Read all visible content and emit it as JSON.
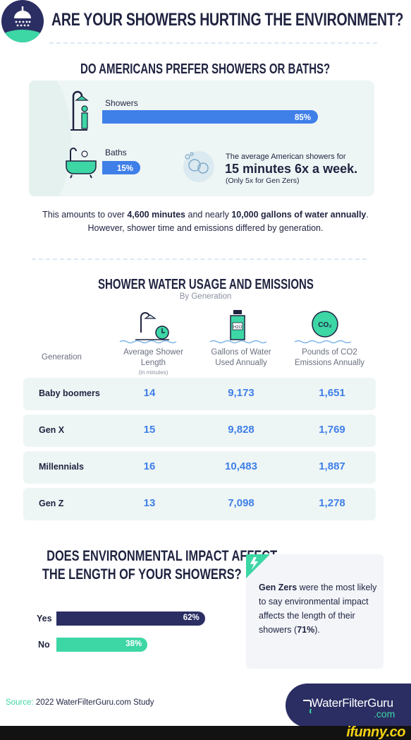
{
  "header": {
    "title": "ARE YOUR SHOWERS HURTING THE ENVIRONMENT?",
    "logo_icon": "shower-head-icon"
  },
  "section1": {
    "title": "DO AMERICANS PREFER SHOWERS OR BATHS?",
    "stat_line1": "The average American showers for",
    "stat_big": "15 minutes 6x a week.",
    "stat_note": "(Only 5x for Gen Zers)"
  },
  "paragraph": {
    "part1": "This amounts to over ",
    "bold1": "4,600 minutes",
    "part2": " and nearly ",
    "bold2": "10,000 gallons of water annually",
    "part3": ". However, shower time and emissions differed by generation."
  },
  "section2": {
    "title": "SHOWER WATER USAGE AND EMISSIONS",
    "subtitle": "By Generation",
    "gen_header": "Generation",
    "col1": "Average Shower Length",
    "col1_note": "(in minutes)",
    "col2": "Gallons of Water Used Annually",
    "col3": "Pounds of CO2 Emissions Annually",
    "co2_icon_text": "CO₂",
    "h2o_icon_text": "H2O"
  },
  "section3": {
    "title_line1": "DOES ENVIRONMENTAL IMPACT AFFECT",
    "title_line2": "THE LENGTH OF YOUR SHOWERS?",
    "card_bold": "Gen Zers",
    "card_text1": " were the most likely to say environmental impact affects the length of their showers (",
    "card_pct": "71%",
    "card_text2": ")."
  },
  "footer": {
    "source_label": "Source:",
    "source_text": " 2022 WaterFilterGuru.com Study",
    "brand": "WaterFilterGuru",
    "brand_com": ".com",
    "watermark": "ifunny.co"
  },
  "colors": {
    "navy": "#2b2e63",
    "blue": "#3f7fe8",
    "green": "#3dd6a5",
    "panel": "#eef6f5"
  },
  "chart_data": [
    {
      "type": "bar",
      "title": "DO AMERICANS PREFER SHOWERS OR BATHS?",
      "categories": [
        "Showers",
        "Baths"
      ],
      "values": [
        85,
        15
      ],
      "value_labels": [
        "85%",
        "15%"
      ],
      "orientation": "horizontal",
      "xlim": [
        0,
        100
      ]
    },
    {
      "type": "table",
      "title": "SHOWER WATER USAGE AND EMISSIONS",
      "subtitle": "By Generation",
      "columns": [
        "Generation",
        "Average Shower Length (in minutes)",
        "Gallons of Water Used Annually",
        "Pounds of CO2 Emissions Annually"
      ],
      "rows": [
        {
          "generation": "Baby boomers",
          "length": "14",
          "gallons": "9,173",
          "co2": "1,651"
        },
        {
          "generation": "Gen X",
          "length": "15",
          "gallons": "9,828",
          "co2": "1,769"
        },
        {
          "generation": "Millennials",
          "length": "16",
          "gallons": "10,483",
          "co2": "1,887"
        },
        {
          "generation": "Gen Z",
          "length": "13",
          "gallons": "7,098",
          "co2": "1,278"
        }
      ]
    },
    {
      "type": "bar",
      "title": "DOES ENVIRONMENTAL IMPACT AFFECT THE LENGTH OF YOUR SHOWERS?",
      "categories": [
        "Yes",
        "No"
      ],
      "values": [
        62,
        38
      ],
      "value_labels": [
        "62%",
        "38%"
      ],
      "orientation": "horizontal",
      "xlim": [
        0,
        100
      ]
    }
  ]
}
